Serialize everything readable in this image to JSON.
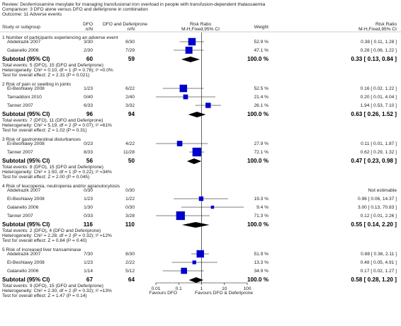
{
  "chart_data": {
    "type": "forest",
    "review": "Review:  Desferrioxamine mesylate for managing transfusional iron overload in people with transfusion-dependent thalassaemia",
    "comparison": "Comparison:  3 DFO alone versus DFO and deferiprone in combination",
    "outcome": "Outcome:  11 Adverse events",
    "columns": {
      "study": "Study or subgroup",
      "dfo": "DFO",
      "dfo_n": "n/N",
      "dfp": "DFO and Deferiprone",
      "dfp_n": "n/N",
      "plot": "Risk Ratio",
      "plot_method": "M-H,Fixed,95% CI",
      "weight": "Weight",
      "ratio": "Risk Ratio",
      "ratio_method": "M-H,Fixed,95% CI"
    },
    "subtotal_label": "Subtotal (95% CI)",
    "x_scale": "log",
    "xlim": [
      0.01,
      100
    ],
    "xticks": [
      0.01,
      0.1,
      1,
      10,
      100
    ],
    "favours_left": "Favours DFO",
    "favours_right": "Favours DFO & Deferiprone",
    "square_color": "#0000cc",
    "diamond_color": "#000000",
    "groups": [
      {
        "title": "1 Number of participants experiencing an adverse event",
        "rows": [
          {
            "study": "Abdelrazik 2007",
            "dfo": "3/30",
            "dfp": "8/30",
            "weight": 52.9,
            "weight_label": "52.9 %",
            "rr": 0.38,
            "lo": 0.11,
            "hi": 1.28,
            "ci_label": "0.38 [ 0.11, 1.28 ]"
          },
          {
            "study": "Galanello 2006",
            "dfo": "2/30",
            "dfp": "7/29",
            "weight": 47.1,
            "weight_label": "47.1 %",
            "rr": 0.28,
            "lo": 0.06,
            "hi": 1.22,
            "ci_label": "0.28 [ 0.06, 1.22 ]"
          }
        ],
        "subtotal": {
          "dfo": 60,
          "dfp": 59,
          "weight": 100,
          "weight_label": "100.0 %",
          "rr": 0.33,
          "lo": 0.13,
          "hi": 0.84,
          "ci_label": "0.33 [ 0.13, 0.84 ]"
        },
        "total_events": "Total events: 5 (DFO), 15 (DFO and Deferiprone)",
        "heterogeneity": "Heterogeneity: Chi² = 0.10, df = 1 (P = 0.76); I² =0.0%",
        "overall_effect": "Test for overall effect: Z = 2.31 (P = 0.021)"
      },
      {
        "title": "2 Risk of pain or swelling in joints",
        "rows": [
          {
            "study": "El-Beshlawy 2008",
            "dfo": "1/23",
            "dfp": "6/22",
            "weight": 52.5,
            "weight_label": "52.5 %",
            "rr": 0.16,
            "lo": 0.02,
            "hi": 1.22,
            "ci_label": "0.16 [ 0.02, 1.22 ]"
          },
          {
            "study": "Tamaddoni 2010",
            "dfo": "0/40",
            "dfp": "2/40",
            "weight": 21.4,
            "weight_label": "21.4 %",
            "rr": 0.2,
            "lo": 0.01,
            "hi": 4.04,
            "ci_label": "0.20 [ 0.01, 4.04 ]"
          },
          {
            "study": "Tanner 2007",
            "dfo": "6/33",
            "dfp": "3/32",
            "weight": 26.1,
            "weight_label": "26.1 %",
            "rr": 1.94,
            "lo": 0.53,
            "hi": 7.1,
            "ci_label": "1.94 [ 0.53, 7.10 ]"
          }
        ],
        "subtotal": {
          "dfo": 96,
          "dfp": 94,
          "weight": 100,
          "weight_label": "100.0 %",
          "rr": 0.63,
          "lo": 0.26,
          "hi": 1.52,
          "ci_label": "0.63 [ 0.26, 1.52 ]"
        },
        "total_events": "Total events: 7 (DFO), 11 (DFO and Deferiprone)",
        "heterogeneity": "Heterogeneity: Chi² = 5.19, df = 2 (P = 0.07); I² =61%",
        "overall_effect": "Test for overall effect: Z = 1.02 (P = 0.31)"
      },
      {
        "title": "3 Risk of gastrointestinal disturbances",
        "rows": [
          {
            "study": "El-Beshlawy 2008",
            "dfo": "0/23",
            "dfp": "4/22",
            "weight": 27.9,
            "weight_label": "27.9 %",
            "rr": 0.11,
            "lo": 0.01,
            "hi": 1.87,
            "ci_label": "0.11 [ 0.01, 1.87 ]"
          },
          {
            "study": "Tanner 2007",
            "dfo": "8/33",
            "dfp": "11/28",
            "weight": 72.1,
            "weight_label": "72.1 %",
            "rr": 0.62,
            "lo": 0.29,
            "hi": 1.32,
            "ci_label": "0.62 [ 0.29, 1.32 ]"
          }
        ],
        "subtotal": {
          "dfo": 56,
          "dfp": 50,
          "weight": 100,
          "weight_label": "100.0 %",
          "rr": 0.47,
          "lo": 0.23,
          "hi": 0.98,
          "ci_label": "0.47 [ 0.23, 0.98 ]"
        },
        "total_events": "Total events: 8 (DFO), 15 (DFO and Deferiprone)",
        "heterogeneity": "Heterogeneity: Chi² = 1.50, df = 1 (P = 0.22); I² =34%",
        "overall_effect": "Test for overall effect: Z = 2.00 (P = 0.045)"
      },
      {
        "title": "4 Risk of leucopenia, neutropenia and/or agranulocytosis",
        "rows": [
          {
            "study": "Abdelrazik 2007",
            "dfo": "0/30",
            "dfp": "0/30",
            "ci_label": "Not estimable"
          },
          {
            "study": "El-Beshlawy 2008",
            "dfo": "1/23",
            "dfp": "1/22",
            "weight": 19.3,
            "weight_label": "19.3 %",
            "rr": 0.96,
            "lo": 0.06,
            "hi": 14.37,
            "ci_label": "0.96 [ 0.06, 14.37 ]"
          },
          {
            "study": "Galanello 2006",
            "dfo": "1/30",
            "dfp": "0/30",
            "weight": 9.4,
            "weight_label": "9.4 %",
            "rr": 3,
            "lo": 0.13,
            "hi": 70.83,
            "ci_label": "3.00 [ 0.13, 70.83 ]"
          },
          {
            "study": "Tanner 2007",
            "dfo": "0/33",
            "dfp": "3/28",
            "weight": 71.3,
            "weight_label": "71.3 %",
            "rr": 0.12,
            "lo": 0.01,
            "hi": 2.26,
            "ci_label": "0.12 [ 0.01, 2.26 ]"
          }
        ],
        "subtotal": {
          "dfo": 116,
          "dfp": 110,
          "weight": 100,
          "weight_label": "100.0 %",
          "rr": 0.55,
          "lo": 0.14,
          "hi": 2.2,
          "ci_label": "0.55 [ 0.14, 2.20 ]"
        },
        "total_events": "Total events: 2 (DFO), 4 (DFO and Deferiprone)",
        "heterogeneity": "Heterogeneity: Chi² = 2.28, df = 2 (P = 0.32); I² =12%",
        "overall_effect": "Test for overall effect: Z = 0.84 (P = 0.40)"
      },
      {
        "title": "5 Risk of increased liver transaminase",
        "rows": [
          {
            "study": "Abdelrazik 2007",
            "dfo": "7/30",
            "dfp": "8/30",
            "weight": 51.9,
            "weight_label": "51.9 %",
            "rr": 0.88,
            "lo": 0.36,
            "hi": 2.11,
            "ci_label": "0.88 [ 0.36, 2.11 ]"
          },
          {
            "study": "El-Beshlawy 2008",
            "dfo": "1/23",
            "dfp": "2/22",
            "weight": 13.3,
            "weight_label": "13.3 %",
            "rr": 0.48,
            "lo": 0.05,
            "hi": 4.91,
            "ci_label": "0.48 [ 0.05, 4.91 ]"
          },
          {
            "study": "Galanello 2006",
            "dfo": "1/14",
            "dfp": "5/12",
            "weight": 34.9,
            "weight_label": "34.9 %",
            "rr": 0.17,
            "lo": 0.02,
            "hi": 1.27,
            "ci_label": "0.17 [ 0.02, 1.27 ]"
          }
        ],
        "subtotal": {
          "dfo": 67,
          "dfp": 64,
          "weight": 100,
          "weight_label": "100.0 %",
          "rr": 0.58,
          "lo": 0.28,
          "hi": 1.2,
          "ci_label": "0.58 [ 0.28, 1.20 ]"
        },
        "total_events": "Total events: 9 (DFO), 15 (DFO and Deferiprone)",
        "heterogeneity": "Heterogeneity: Chi² = 2.30, df = 2 (P = 0.32); I² =13%",
        "overall_effect": "Test for overall effect: Z = 1.47 (P = 0.14)"
      }
    ]
  }
}
